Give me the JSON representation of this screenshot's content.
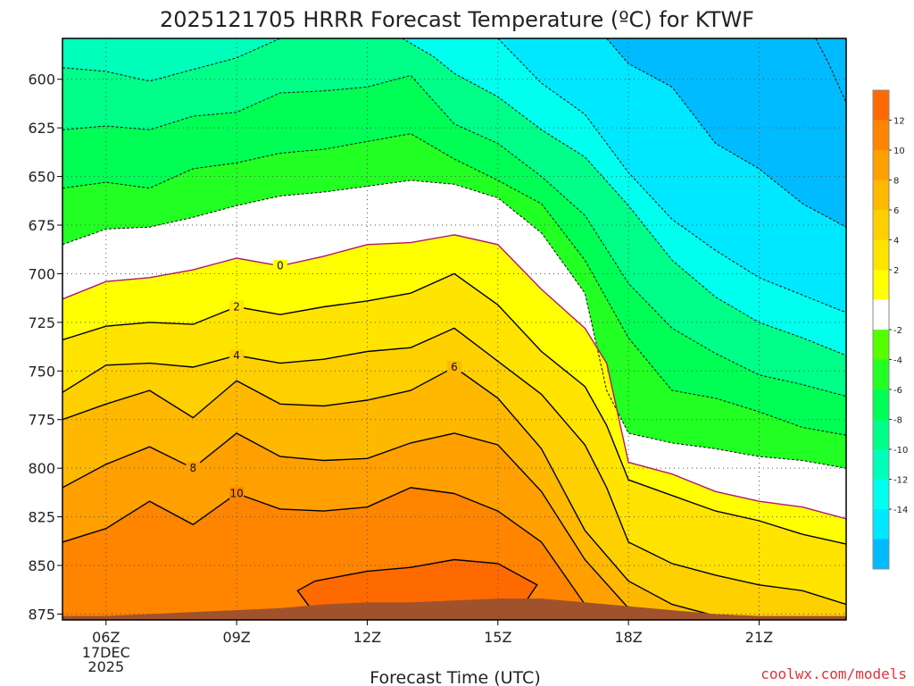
{
  "chart_data": {
    "type": "heatmap",
    "title": "2025121705 HRRR Forecast Temperature (ºC) for KTWF",
    "xlabel": "Forecast Time (UTC)",
    "ylabel": "",
    "credit": "coolwx.com/models",
    "x_ticks": [
      {
        "hour": 6,
        "label": "06Z",
        "sub": [
          "17DEC",
          "2025"
        ]
      },
      {
        "hour": 9,
        "label": "09Z"
      },
      {
        "hour": 12,
        "label": "12Z"
      },
      {
        "hour": 15,
        "label": "15Z"
      },
      {
        "hour": 18,
        "label": "18Z"
      },
      {
        "hour": 21,
        "label": "21Z"
      }
    ],
    "x_range_hours": [
      5,
      23
    ],
    "y_ticks": [
      600,
      625,
      650,
      675,
      700,
      725,
      750,
      775,
      800,
      825,
      850,
      875
    ],
    "y_range_hPa": [
      579,
      878
    ],
    "y_axis": "pressure (hPa), increasing downward",
    "grid": "dotted",
    "colorbar": {
      "labels": [
        12,
        10,
        8,
        6,
        4,
        2,
        -2,
        -4,
        -6,
        -8,
        -10,
        -12,
        -14
      ],
      "band_colors_top_to_bottom": [
        "#ff6a00",
        "#ff8400",
        "#ffa000",
        "#ffb800",
        "#ffd000",
        "#ffe400",
        "#ffff00",
        "#ffffff",
        "#55ff00",
        "#22ff22",
        "#00ff55",
        "#00ff88",
        "#00ffbb",
        "#00ffee",
        "#00e8ff",
        "#00bbff"
      ]
    },
    "temperature_contours": [
      {
        "level": 0,
        "color": "#b0186b",
        "label_at": 10,
        "points": [
          [
            5,
            713
          ],
          [
            6,
            704
          ],
          [
            7,
            702
          ],
          [
            8,
            698
          ],
          [
            9,
            692
          ],
          [
            10,
            696
          ],
          [
            11,
            691
          ],
          [
            12,
            685
          ],
          [
            13,
            684
          ],
          [
            14,
            680
          ],
          [
            15,
            685
          ],
          [
            16,
            708
          ],
          [
            17,
            728
          ],
          [
            17.5,
            746
          ],
          [
            18,
            797
          ],
          [
            19,
            803
          ],
          [
            20,
            812
          ],
          [
            21,
            817
          ],
          [
            22,
            820
          ],
          [
            23,
            826
          ]
        ]
      },
      {
        "level": 2,
        "color": "#000000",
        "label_at": 9,
        "points": [
          [
            5,
            734
          ],
          [
            6,
            727
          ],
          [
            7,
            725
          ],
          [
            8,
            726
          ],
          [
            9,
            717
          ],
          [
            10,
            721
          ],
          [
            11,
            717
          ],
          [
            12,
            714
          ],
          [
            13,
            710
          ],
          [
            14,
            700
          ],
          [
            15,
            716
          ],
          [
            16,
            740
          ],
          [
            17,
            758
          ],
          [
            17.5,
            778
          ],
          [
            18,
            806
          ],
          [
            19,
            814
          ],
          [
            20,
            822
          ],
          [
            21,
            827
          ],
          [
            22,
            834
          ],
          [
            23,
            839
          ]
        ]
      },
      {
        "level": 4,
        "color": "#000000",
        "label_at": 9,
        "points": [
          [
            5,
            761
          ],
          [
            6,
            747
          ],
          [
            7,
            746
          ],
          [
            8,
            748
          ],
          [
            9,
            742
          ],
          [
            10,
            746
          ],
          [
            11,
            744
          ],
          [
            12,
            740
          ],
          [
            13,
            738
          ],
          [
            14,
            728
          ],
          [
            15,
            745
          ],
          [
            16,
            762
          ],
          [
            17,
            788
          ],
          [
            17.5,
            810
          ],
          [
            18,
            838
          ],
          [
            19,
            849
          ],
          [
            20,
            855
          ],
          [
            21,
            860
          ],
          [
            22,
            863
          ],
          [
            23,
            870
          ]
        ]
      },
      {
        "level": 6,
        "color": "#000000",
        "label_at": 14,
        "points": [
          [
            5,
            775
          ],
          [
            6,
            767
          ],
          [
            7,
            760
          ],
          [
            8,
            774
          ],
          [
            9,
            755
          ],
          [
            10,
            767
          ],
          [
            11,
            768
          ],
          [
            12,
            765
          ],
          [
            13,
            760
          ],
          [
            14,
            748
          ],
          [
            15,
            764
          ],
          [
            16,
            790
          ],
          [
            17,
            832
          ],
          [
            18,
            858
          ],
          [
            19,
            870
          ],
          [
            20,
            876
          ]
        ]
      },
      {
        "level": 8,
        "color": "#000000",
        "label_at": 8,
        "points": [
          [
            5,
            810
          ],
          [
            6,
            798
          ],
          [
            7,
            789
          ],
          [
            8,
            800
          ],
          [
            9,
            782
          ],
          [
            10,
            794
          ],
          [
            11,
            796
          ],
          [
            12,
            795
          ],
          [
            13,
            787
          ],
          [
            14,
            782
          ],
          [
            15,
            788
          ],
          [
            16,
            812
          ],
          [
            17,
            847
          ],
          [
            18,
            872
          ],
          [
            18.7,
            877
          ]
        ]
      },
      {
        "level": 10,
        "color": "#000000",
        "label_at": 9,
        "points": [
          [
            5,
            838
          ],
          [
            6,
            831
          ],
          [
            7,
            817
          ],
          [
            8,
            829
          ],
          [
            9,
            813
          ],
          [
            10,
            821
          ],
          [
            11,
            822
          ],
          [
            12,
            820
          ],
          [
            13,
            810
          ],
          [
            14,
            813
          ],
          [
            15,
            822
          ],
          [
            16,
            838
          ],
          [
            17,
            870
          ],
          [
            17.3,
            877
          ]
        ]
      },
      {
        "level": 12,
        "color": "#000000",
        "closed": true,
        "points": [
          [
            10.4,
            863
          ],
          [
            10.8,
            858
          ],
          [
            12,
            853
          ],
          [
            13,
            851
          ],
          [
            14,
            847
          ],
          [
            15,
            849
          ],
          [
            15.9,
            860
          ],
          [
            15.6,
            870
          ],
          [
            14,
            872
          ],
          [
            12,
            873
          ],
          [
            10.7,
            872
          ]
        ]
      }
    ],
    "cold_contours": [
      {
        "points": [
          [
            5,
            685
          ],
          [
            6,
            677
          ],
          [
            7,
            676
          ],
          [
            8,
            671
          ],
          [
            9,
            665
          ],
          [
            10,
            660
          ],
          [
            11,
            658
          ],
          [
            12,
            655
          ],
          [
            13,
            652
          ],
          [
            14,
            654
          ],
          [
            15,
            661
          ],
          [
            16,
            679
          ],
          [
            17,
            710
          ],
          [
            17.5,
            760
          ],
          [
            18,
            782
          ],
          [
            19,
            787
          ],
          [
            20,
            790
          ],
          [
            21,
            794
          ],
          [
            22,
            796
          ],
          [
            23,
            800
          ]
        ]
      },
      {
        "points": [
          [
            5,
            656
          ],
          [
            6,
            653
          ],
          [
            7,
            656
          ],
          [
            8,
            646
          ],
          [
            9,
            643
          ],
          [
            10,
            638
          ],
          [
            11,
            636
          ],
          [
            12,
            632
          ],
          [
            13,
            628
          ],
          [
            14,
            641
          ],
          [
            15,
            652
          ],
          [
            16,
            664
          ],
          [
            17,
            693
          ],
          [
            18,
            733
          ],
          [
            19,
            760
          ],
          [
            20,
            764
          ],
          [
            21,
            771
          ],
          [
            22,
            779
          ],
          [
            23,
            783
          ]
        ]
      },
      {
        "points": [
          [
            5,
            626
          ],
          [
            6,
            624
          ],
          [
            7,
            626
          ],
          [
            8,
            619
          ],
          [
            9,
            617
          ],
          [
            10,
            607
          ],
          [
            11,
            606
          ],
          [
            12,
            604
          ],
          [
            13,
            598
          ],
          [
            14,
            623
          ],
          [
            15,
            633
          ],
          [
            16,
            650
          ],
          [
            17,
            670
          ],
          [
            18,
            705
          ],
          [
            19,
            728
          ],
          [
            20,
            741
          ],
          [
            21,
            752
          ],
          [
            22,
            757
          ],
          [
            23,
            763
          ]
        ]
      },
      {
        "points": [
          [
            5,
            594
          ],
          [
            6,
            596
          ],
          [
            7,
            601
          ],
          [
            8,
            595
          ],
          [
            9,
            589
          ],
          [
            10,
            579
          ]
        ]
      },
      {
        "points": [
          [
            12.8,
            579
          ],
          [
            13.5,
            588
          ],
          [
            14,
            597
          ],
          [
            15,
            609
          ],
          [
            16,
            626
          ],
          [
            17,
            640
          ],
          [
            18,
            665
          ],
          [
            19,
            693
          ],
          [
            20,
            712
          ],
          [
            21,
            725
          ],
          [
            22,
            733
          ],
          [
            23,
            742
          ]
        ]
      },
      {
        "points": [
          [
            15,
            579
          ],
          [
            16,
            602
          ],
          [
            17,
            618
          ],
          [
            18,
            648
          ],
          [
            19,
            672
          ],
          [
            20,
            688
          ],
          [
            21,
            702
          ],
          [
            22,
            711
          ],
          [
            23,
            720
          ]
        ]
      },
      {
        "points": [
          [
            17.5,
            579
          ],
          [
            18,
            592
          ],
          [
            19,
            604
          ],
          [
            20,
            633
          ],
          [
            21,
            646
          ],
          [
            22,
            664
          ],
          [
            23,
            676
          ]
        ]
      },
      {
        "points": [
          [
            22.3,
            579
          ],
          [
            22.6,
            592
          ],
          [
            23,
            612
          ]
        ]
      }
    ],
    "warm_fill_top_to_bottom": [
      {
        "between": [
          "surface",
          12
        ],
        "color": "#ff6a00"
      },
      {
        "between": [
          12,
          10
        ],
        "color": "#ff8400"
      },
      {
        "between": [
          10,
          8
        ],
        "color": "#ffa000"
      },
      {
        "between": [
          8,
          6
        ],
        "color": "#ffb800"
      },
      {
        "between": [
          6,
          4
        ],
        "color": "#ffd000"
      },
      {
        "between": [
          4,
          2
        ],
        "color": "#ffe400"
      },
      {
        "between": [
          2,
          0
        ],
        "color": "#ffff00"
      },
      {
        "between": [
          0,
          -2
        ],
        "color": "#ffffff"
      }
    ],
    "cold_fill_colors": [
      "#55ff00",
      "#22ff22",
      "#00ff55",
      "#00ff88",
      "#00ffbb",
      "#00ffee",
      "#00e8ff",
      "#00bbff"
    ],
    "terrain": {
      "color": "#a0522d",
      "points": [
        [
          5,
          876
        ],
        [
          6,
          876
        ],
        [
          7,
          875
        ],
        [
          8,
          874
        ],
        [
          9,
          873
        ],
        [
          10,
          872
        ],
        [
          11,
          870
        ],
        [
          12,
          869
        ],
        [
          13,
          869
        ],
        [
          14,
          868
        ],
        [
          15,
          867
        ],
        [
          16,
          867
        ],
        [
          17,
          869
        ],
        [
          18,
          871
        ],
        [
          19,
          873
        ],
        [
          20,
          875
        ],
        [
          21,
          876
        ],
        [
          22,
          876
        ],
        [
          23,
          876
        ]
      ]
    }
  }
}
